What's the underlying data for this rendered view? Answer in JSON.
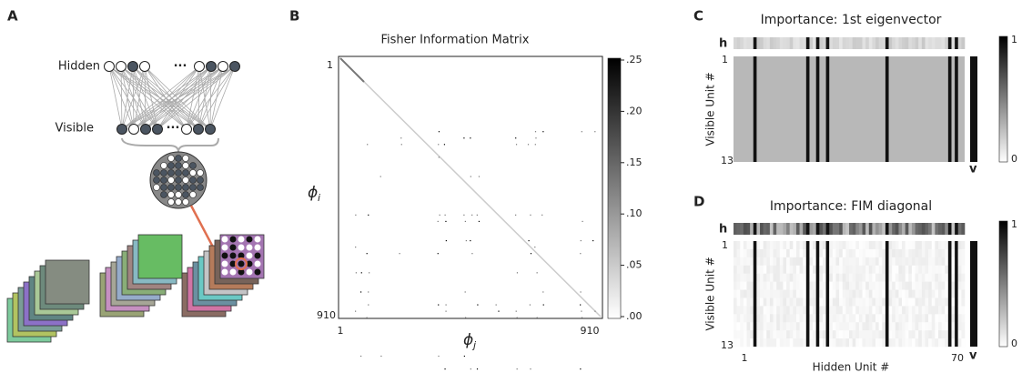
{
  "panels": [
    {
      "label": "A",
      "hidden": "Hidden",
      "visible": "Visible",
      "ellipsis": "···"
    },
    {
      "label": "B",
      "title": "Fisher Information Matrix",
      "y_symbol": "ϕ",
      "y_subscript": "i",
      "x_symbol": "ϕ",
      "x_subscript": "j",
      "y_ticks": [
        "1",
        "910"
      ],
      "x_ticks": [
        "1",
        "910"
      ],
      "colorbar_ticks": [
        ".25",
        ".20",
        ".15",
        ".10",
        ".05",
        ".00"
      ]
    },
    {
      "label": "C",
      "title": "Importance: 1st eigenvector",
      "h": "h",
      "v": "v",
      "y_label": "Visible Unit #",
      "y_ticks": [
        "1",
        "13"
      ],
      "colorbar_ticks": [
        "1",
        "0"
      ]
    },
    {
      "label": "D",
      "title": "Importance: FIM diagonal",
      "h": "h",
      "v": "v",
      "y_label": "Visible Unit #",
      "y_ticks": [
        "1",
        "13"
      ],
      "x_ticks": [
        "1",
        "70"
      ],
      "x_label": "Hidden Unit #",
      "colorbar_ticks": [
        "1",
        "0"
      ]
    }
  ]
}
